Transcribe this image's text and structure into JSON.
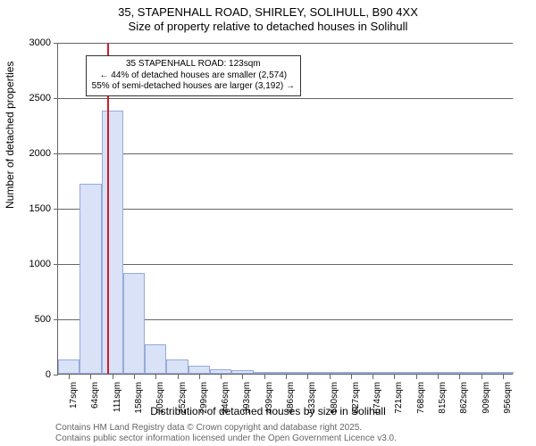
{
  "title": {
    "line1": "35, STAPENHALL ROAD, SHIRLEY, SOLIHULL, B90 4XX",
    "line2": "Size of property relative to detached houses in Solihull"
  },
  "chart": {
    "type": "histogram",
    "ylabel": "Number of detached properties",
    "xlabel": "Distribution of detached houses by size in Solihull",
    "ylim": [
      0,
      3000
    ],
    "ytick_step": 500,
    "yticks": [
      0,
      500,
      1000,
      1500,
      2000,
      2500,
      3000
    ],
    "x_categories": [
      "17sqm",
      "64sqm",
      "111sqm",
      "158sqm",
      "205sqm",
      "252sqm",
      "299sqm",
      "346sqm",
      "393sqm",
      "439sqm",
      "486sqm",
      "533sqm",
      "580sqm",
      "627sqm",
      "674sqm",
      "721sqm",
      "768sqm",
      "815sqm",
      "862sqm",
      "909sqm",
      "956sqm"
    ],
    "bar_values": [
      130,
      1720,
      2380,
      910,
      270,
      130,
      70,
      40,
      30,
      20,
      15,
      10,
      8,
      5,
      3,
      2,
      2,
      1,
      1,
      1,
      1
    ],
    "bar_fill_color": "#d9e2f6",
    "bar_border_color": "#96aadb",
    "background_color": "#ffffff",
    "axis_color": "#666666",
    "grid_color": "#666666",
    "marker_color": "#d01c2a",
    "marker_x_index": 2.25,
    "bar_gap_ratio": 0.0,
    "label_fontsize": 12,
    "tick_fontsize": 11,
    "xtick_fontsize": 10
  },
  "callout": {
    "line1": "35 STAPENHALL ROAD: 123sqm",
    "line2": "← 44% of detached houses are smaller (2,574)",
    "line3": "55% of semi-detached houses are larger (3,192) →"
  },
  "footer": {
    "line1": "Contains HM Land Registry data © Crown copyright and database right 2025.",
    "line2": "Contains public sector information licensed under the Open Government Licence v3.0."
  }
}
